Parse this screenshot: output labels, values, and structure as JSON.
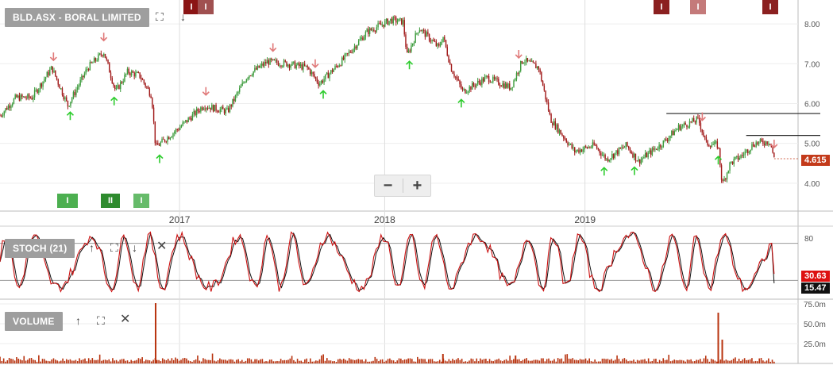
{
  "price_panel": {
    "title": "BLD.ASX - BORAL LIMITED",
    "last_price_label": "4.615",
    "zoom_out": "−",
    "zoom_in": "+"
  },
  "stoch_panel": {
    "title": "STOCH (21)",
    "badge_k": "30.63",
    "badge_d": "15.47",
    "level_label": "80"
  },
  "volume_panel": {
    "title": "VOLUME"
  },
  "event_markers": {
    "top": [
      "I",
      "I",
      "I",
      "I",
      "I"
    ],
    "bottom": [
      "I",
      "II",
      "I"
    ]
  },
  "colors": {
    "up": "#3a9a3a",
    "down": "#a01818",
    "badge_red": "#c33a1a",
    "stoch_line": "#cc1111",
    "sell_arrow": "#e07a7a",
    "buy_arrow": "#2ecc2e"
  },
  "chart_data": {
    "type": "candlestick",
    "title": "BLD.ASX - BORAL LIMITED",
    "x_labels": [
      "2017",
      "2018",
      "2019"
    ],
    "y_ticks": [
      4.0,
      5.0,
      6.0,
      7.0,
      8.0
    ],
    "ylim": [
      3.3,
      8.6
    ],
    "last_price": 4.615,
    "price_path": [
      {
        "t": 0.0,
        "p": 5.7
      },
      {
        "t": 0.02,
        "p": 6.15
      },
      {
        "t": 0.04,
        "p": 6.15
      },
      {
        "t": 0.065,
        "p": 6.9
      },
      {
        "t": 0.085,
        "p": 5.95
      },
      {
        "t": 0.11,
        "p": 6.9
      },
      {
        "t": 0.13,
        "p": 7.3
      },
      {
        "t": 0.145,
        "p": 6.3
      },
      {
        "t": 0.16,
        "p": 6.8
      },
      {
        "t": 0.175,
        "p": 6.7
      },
      {
        "t": 0.19,
        "p": 6.2
      },
      {
        "t": 0.195,
        "p": 4.9
      },
      {
        "t": 0.225,
        "p": 5.4
      },
      {
        "t": 0.255,
        "p": 5.95
      },
      {
        "t": 0.285,
        "p": 5.8
      },
      {
        "t": 0.31,
        "p": 6.7
      },
      {
        "t": 0.335,
        "p": 7.05
      },
      {
        "t": 0.36,
        "p": 7.0
      },
      {
        "t": 0.385,
        "p": 6.9
      },
      {
        "t": 0.4,
        "p": 6.5
      },
      {
        "t": 0.43,
        "p": 7.1
      },
      {
        "t": 0.46,
        "p": 7.8
      },
      {
        "t": 0.49,
        "p": 8.1
      },
      {
        "t": 0.505,
        "p": 8.05
      },
      {
        "t": 0.51,
        "p": 7.2
      },
      {
        "t": 0.525,
        "p": 7.9
      },
      {
        "t": 0.55,
        "p": 7.4
      },
      {
        "t": 0.555,
        "p": 7.7
      },
      {
        "t": 0.565,
        "p": 6.9
      },
      {
        "t": 0.58,
        "p": 6.3
      },
      {
        "t": 0.61,
        "p": 6.65
      },
      {
        "t": 0.64,
        "p": 6.4
      },
      {
        "t": 0.655,
        "p": 7.1
      },
      {
        "t": 0.675,
        "p": 6.9
      },
      {
        "t": 0.69,
        "p": 5.6
      },
      {
        "t": 0.72,
        "p": 4.8
      },
      {
        "t": 0.745,
        "p": 4.95
      },
      {
        "t": 0.76,
        "p": 4.6
      },
      {
        "t": 0.785,
        "p": 4.95
      },
      {
        "t": 0.8,
        "p": 4.55
      },
      {
        "t": 0.83,
        "p": 5.0
      },
      {
        "t": 0.85,
        "p": 5.4
      },
      {
        "t": 0.875,
        "p": 5.6
      },
      {
        "t": 0.885,
        "p": 5.0
      },
      {
        "t": 0.9,
        "p": 4.95
      },
      {
        "t": 0.905,
        "p": 3.95
      },
      {
        "t": 0.915,
        "p": 4.5
      },
      {
        "t": 0.93,
        "p": 4.7
      },
      {
        "t": 0.945,
        "p": 5.0
      },
      {
        "t": 0.965,
        "p": 5.05
      },
      {
        "t": 0.97,
        "p": 4.615
      }
    ],
    "resistance_lines": [
      {
        "from": 0.835,
        "to": 1.0,
        "value": 5.75
      },
      {
        "from": 0.935,
        "to": 1.0,
        "value": 5.2
      }
    ],
    "sell_signals": [
      0.067,
      0.13,
      0.258,
      0.342,
      0.395,
      0.65,
      0.88,
      0.97
    ],
    "buy_signals": [
      0.088,
      0.143,
      0.2,
      0.405,
      0.513,
      0.578,
      0.757,
      0.795,
      0.9
    ],
    "stochastic": {
      "levels": [
        20,
        80
      ],
      "k_last": 30.63,
      "d_last": 15.47
    },
    "volume": {
      "y_ticks": [
        "25.0m",
        "50.0m",
        "75.0m"
      ],
      "ymax": 80,
      "spikes": [
        {
          "t": 0.195,
          "v": 76
        },
        {
          "t": 0.555,
          "v": 12
        },
        {
          "t": 0.646,
          "v": 10
        },
        {
          "t": 0.9,
          "v": 64
        },
        {
          "t": 0.905,
          "v": 30
        }
      ]
    }
  }
}
